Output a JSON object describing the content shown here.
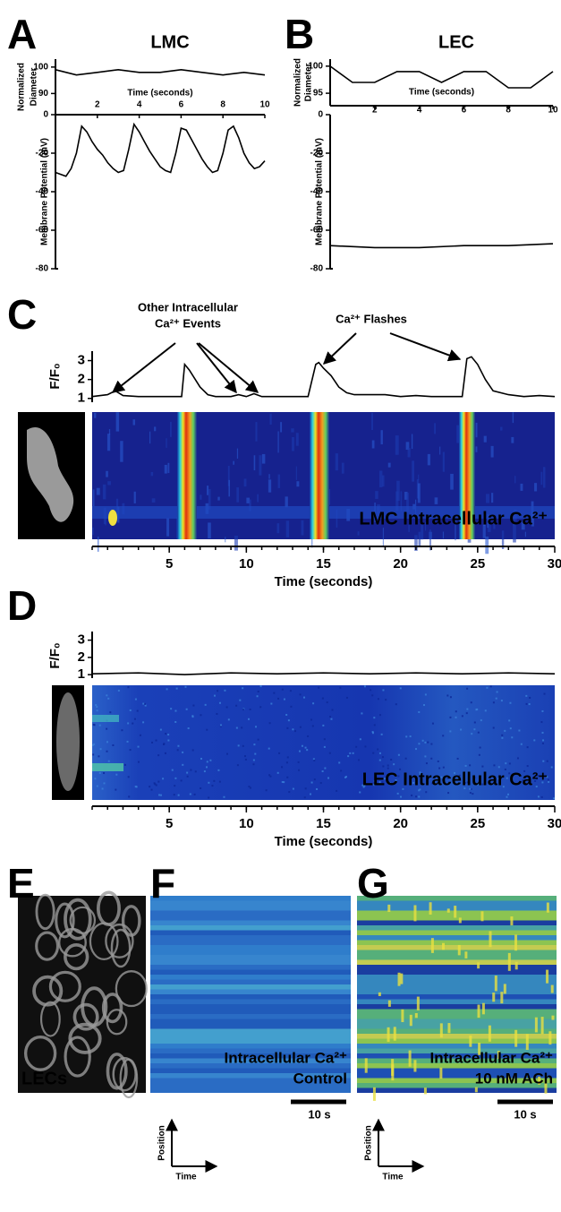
{
  "panel_labels": [
    "A",
    "B",
    "C",
    "D",
    "E",
    "F",
    "G"
  ],
  "panel_e": {
    "label": "LECs"
  },
  "panel_f": {
    "caption": [
      "Intracellular Ca²⁺",
      "Control"
    ],
    "scale_bar": "10 s",
    "y_arrow": "Position",
    "x_arrow": "Time"
  },
  "panel_g": {
    "caption": [
      "Intracellular Ca²⁺",
      "10 nM ACh"
    ],
    "scale_bar": "10 s",
    "y_arrow": "Position",
    "x_arrow": "Time"
  },
  "chart_data": [
    {
      "type": "line",
      "title": "LMC",
      "xlabel": "Time (seconds)",
      "ylabel": [
        "Normalized",
        "Diameter"
      ],
      "x": [
        0,
        1,
        2,
        3,
        4,
        5,
        6,
        7,
        8,
        9,
        10
      ],
      "values": [
        99,
        97,
        98,
        99,
        98,
        98,
        99,
        98,
        97,
        98,
        97
      ],
      "xlim": [
        0,
        10
      ],
      "xticks": [
        2,
        4,
        6,
        8,
        10
      ],
      "ylim": [
        82,
        103
      ],
      "yticks": [
        90,
        100
      ],
      "color": "#000000"
    },
    {
      "type": "line",
      "ylabel": [
        "Membrane Potential (mV)"
      ],
      "x": [
        0,
        0.25,
        0.5,
        0.75,
        1,
        1.25,
        1.5,
        1.75,
        2,
        2.25,
        2.5,
        2.75,
        3,
        3.25,
        3.5,
        3.75,
        4,
        4.25,
        4.5,
        4.75,
        5,
        5.25,
        5.5,
        5.75,
        6,
        6.25,
        6.5,
        6.75,
        7,
        7.25,
        7.5,
        7.75,
        8,
        8.25,
        8.5,
        8.75,
        9,
        9.25,
        9.5,
        9.75,
        10
      ],
      "values": [
        -30,
        -31,
        -32,
        -28,
        -20,
        -6,
        -9,
        -14,
        -18,
        -21,
        -25,
        -28,
        -30,
        -29,
        -18,
        -5,
        -9,
        -14,
        -19,
        -23,
        -27,
        -29,
        -30,
        -20,
        -7,
        -8,
        -13,
        -18,
        -23,
        -27,
        -30,
        -29,
        -20,
        -8,
        -6,
        -12,
        -20,
        -25,
        -28,
        -27,
        -24
      ],
      "xlim": [
        0,
        10
      ],
      "ylim": [
        -80,
        0
      ],
      "yticks": [
        0,
        -20,
        -40,
        -60,
        -80
      ],
      "color": "#000000"
    },
    {
      "type": "line",
      "title": "LEC",
      "xlabel": "Time (seconds)",
      "ylabel": [
        "Normalized",
        "Diameter"
      ],
      "x": [
        0,
        1,
        2,
        3,
        4,
        5,
        6,
        7,
        8,
        9,
        10
      ],
      "values": [
        100,
        97,
        97,
        99,
        99,
        97,
        99,
        99,
        96,
        96,
        99
      ],
      "xlim": [
        0,
        10
      ],
      "xticks": [
        2,
        4,
        6,
        8,
        10
      ],
      "ylim": [
        92.7,
        101.3
      ],
      "yticks": [
        95,
        100
      ],
      "color": "#000000"
    },
    {
      "type": "line",
      "ylabel": [
        "Membrane Potential (mV)"
      ],
      "x": [
        0,
        2,
        4,
        6,
        8,
        10
      ],
      "values": [
        -68,
        -69,
        -69,
        -68,
        -68,
        -67
      ],
      "xlim": [
        0,
        10
      ],
      "ylim": [
        -80,
        0
      ],
      "yticks": [
        0,
        -20,
        -40,
        -60,
        -80
      ],
      "color": "#000000"
    },
    {
      "type": "line",
      "xlabel": "Time (seconds)",
      "ylabel": [
        "F/F₀"
      ],
      "annotations": [
        "Other Intracellular",
        "Ca²⁺ Events",
        "Ca²⁺ Flashes"
      ],
      "heatmap_label": "LMC Intracellular Ca²⁺",
      "x": [
        0,
        1,
        1.5,
        2,
        3,
        4,
        5,
        5.8,
        6,
        6.3,
        7,
        7.5,
        8,
        9,
        9.5,
        10,
        10.5,
        11,
        12,
        13,
        14,
        14.5,
        14.7,
        15,
        15.5,
        16,
        16.5,
        17,
        18,
        19,
        20,
        21,
        22,
        23,
        24,
        24.3,
        24.6,
        25,
        25.5,
        26,
        27,
        28,
        29,
        30
      ],
      "values": [
        1.1,
        1.2,
        1.4,
        1.15,
        1.1,
        1.1,
        1.1,
        1.1,
        2.8,
        2.5,
        1.6,
        1.2,
        1.1,
        1.1,
        1.2,
        1.1,
        1.25,
        1.1,
        1.1,
        1.1,
        1.1,
        2.8,
        2.9,
        2.6,
        2.2,
        1.6,
        1.3,
        1.2,
        1.2,
        1.2,
        1.1,
        1.15,
        1.1,
        1.1,
        1.1,
        3.1,
        3.2,
        2.8,
        2.0,
        1.4,
        1.2,
        1.1,
        1.15,
        1.1
      ],
      "xlim": [
        0,
        30
      ],
      "xticks": [
        5,
        10,
        15,
        20,
        25,
        30
      ],
      "ylim": [
        0.8,
        3.5
      ],
      "yticks": [
        1,
        2,
        3
      ],
      "color": "#000000"
    },
    {
      "type": "line",
      "xlabel": "Time (seconds)",
      "ylabel": [
        "F/F₀"
      ],
      "heatmap_label": "LEC Intracellular Ca²⁺",
      "x": [
        0,
        3,
        6,
        9,
        12,
        15,
        18,
        21,
        24,
        27,
        30
      ],
      "values": [
        1.05,
        1.1,
        1.0,
        1.1,
        1.05,
        1.1,
        1.05,
        1.1,
        1.05,
        1.1,
        1.05
      ],
      "xlim": [
        0,
        30
      ],
      "xticks": [
        5,
        10,
        15,
        20,
        25,
        30
      ],
      "ylim": [
        0.8,
        3.5
      ],
      "yticks": [
        1,
        2,
        3
      ],
      "color": "#000000"
    }
  ]
}
